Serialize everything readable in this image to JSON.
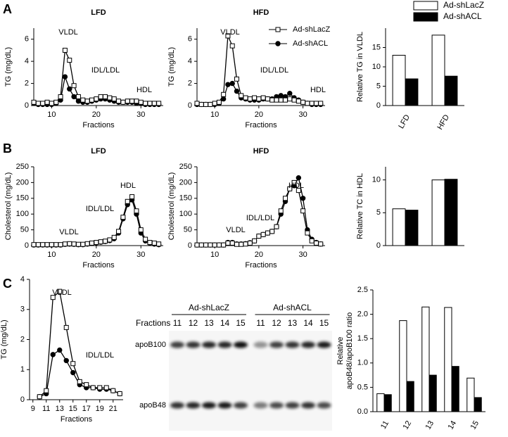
{
  "panel_labels": [
    "A",
    "B",
    "C"
  ],
  "chart_data": [
    {
      "type": "line",
      "title": "LFD",
      "xlabel": "Fractions",
      "ylabel": "TG (mg/dL)",
      "x": [
        6,
        7,
        8,
        9,
        10,
        11,
        12,
        13,
        14,
        15,
        16,
        17,
        18,
        19,
        20,
        21,
        22,
        23,
        24,
        25,
        26,
        27,
        28,
        29,
        30,
        31,
        32,
        33,
        34
      ],
      "xlim": [
        6,
        35
      ],
      "xticks": [
        10,
        20,
        30
      ],
      "ylim": [
        0,
        7
      ],
      "yticks": [
        0,
        2,
        4,
        6
      ],
      "annotations": [
        "VLDL",
        "IDL/LDL",
        "HDL"
      ],
      "series": [
        {
          "color": "#000000",
          "marker": "square-open",
          "values": [
            0.3,
            0.2,
            0.2,
            0.3,
            0.2,
            0.3,
            0.8,
            5.0,
            4.1,
            1.8,
            0.8,
            0.5,
            0.4,
            0.5,
            0.6,
            0.8,
            0.8,
            0.7,
            0.6,
            0.4,
            0.3,
            0.4,
            0.4,
            0.4,
            0.3,
            0.2,
            0.2,
            0.2,
            0.2
          ]
        },
        {
          "color": "#000000",
          "marker": "circle-filled",
          "values": [
            0.2,
            0.1,
            0.1,
            0.1,
            0.1,
            0.2,
            0.5,
            2.6,
            1.5,
            0.8,
            0.4,
            0.3,
            0.3,
            0.4,
            0.5,
            0.6,
            0.6,
            0.5,
            0.4,
            0.3,
            0.3,
            0.3,
            0.3,
            0.2,
            0.2,
            0.1,
            0.1,
            0.1,
            0.1
          ]
        }
      ]
    },
    {
      "type": "line",
      "title": "HFD",
      "xlabel": "Fractions",
      "ylabel": "TG (mg/dL)",
      "x": [
        6,
        7,
        8,
        9,
        10,
        11,
        12,
        13,
        14,
        15,
        16,
        17,
        18,
        19,
        20,
        21,
        22,
        23,
        24,
        25,
        26,
        27,
        28,
        29,
        30,
        31,
        32,
        33,
        34
      ],
      "xlim": [
        6,
        35
      ],
      "xticks": [
        10,
        20,
        30
      ],
      "ylim": [
        0,
        7
      ],
      "yticks": [
        0,
        2,
        4,
        6
      ],
      "annotations": [
        "VLDL",
        "IDL/LDL",
        "HDL"
      ],
      "legend": "upper right",
      "series": [
        {
          "name": "Ad-shLacZ",
          "color": "#000000",
          "marker": "square-open",
          "values": [
            0.2,
            0.1,
            0.1,
            0.1,
            0.2,
            0.3,
            1.0,
            6.3,
            5.4,
            2.4,
            0.9,
            0.7,
            0.6,
            0.7,
            0.6,
            0.7,
            0.6,
            0.5,
            0.5,
            0.5,
            0.5,
            0.6,
            0.5,
            0.4,
            0.3,
            0.2,
            0.2,
            0.2,
            0.2
          ]
        },
        {
          "name": "Ad-shACL",
          "color": "#000000",
          "marker": "circle-filled",
          "values": [
            0.1,
            0.1,
            0.1,
            0.1,
            0.1,
            0.2,
            0.6,
            1.9,
            2.0,
            1.3,
            0.7,
            0.6,
            0.5,
            0.5,
            0.5,
            0.6,
            0.6,
            0.6,
            0.8,
            0.9,
            0.8,
            1.1,
            0.7,
            0.5,
            0.3,
            0.2,
            0.1,
            0.1,
            0.1
          ]
        }
      ]
    },
    {
      "type": "bar",
      "ylabel": "Relative TG in VLDL",
      "categories": [
        "LFD",
        "HFD"
      ],
      "ylim": [
        0,
        20
      ],
      "yticks": [
        0,
        5,
        10,
        15
      ],
      "legend": "above",
      "series": [
        {
          "name": "Ad-shLacZ",
          "color": "#ffffff",
          "values": [
            13,
            18.2
          ]
        },
        {
          "name": "Ad-shACL",
          "color": "#000000",
          "values": [
            6.9,
            7.6
          ]
        }
      ]
    },
    {
      "type": "line",
      "title": "LFD",
      "xlabel": "Fractions",
      "ylabel": "Cholesterol (mg/dL)",
      "x": [
        6,
        7,
        8,
        9,
        10,
        11,
        12,
        13,
        14,
        15,
        16,
        17,
        18,
        19,
        20,
        21,
        22,
        23,
        24,
        25,
        26,
        27,
        28,
        29,
        30,
        31,
        32,
        33,
        34
      ],
      "xlim": [
        6,
        35
      ],
      "xticks": [
        10,
        20,
        30
      ],
      "ylim": [
        0,
        250
      ],
      "yticks": [
        0,
        50,
        100,
        150,
        200,
        250
      ],
      "annotations": [
        "VLDL",
        "IDL/LDL",
        "HDL"
      ],
      "series": [
        {
          "color": "#000000",
          "marker": "square-open",
          "values": [
            3,
            3,
            3,
            3,
            3,
            3,
            3,
            5,
            6,
            5,
            4,
            4,
            6,
            8,
            10,
            12,
            14,
            18,
            26,
            45,
            90,
            140,
            155,
            110,
            50,
            20,
            10,
            8,
            5
          ]
        },
        {
          "color": "#000000",
          "marker": "circle-filled",
          "values": [
            2,
            2,
            2,
            2,
            2,
            2,
            2,
            4,
            5,
            4,
            3,
            3,
            5,
            7,
            9,
            11,
            13,
            16,
            22,
            40,
            85,
            130,
            145,
            100,
            40,
            15,
            8,
            5,
            3
          ]
        }
      ]
    },
    {
      "type": "line",
      "title": "HFD",
      "xlabel": "Fractions",
      "ylabel": "Cholesterol (mg/dL)",
      "x": [
        6,
        7,
        8,
        9,
        10,
        11,
        12,
        13,
        14,
        15,
        16,
        17,
        18,
        19,
        20,
        21,
        22,
        23,
        24,
        25,
        26,
        27,
        28,
        29,
        30,
        31,
        32,
        33,
        34
      ],
      "xlim": [
        6,
        35
      ],
      "xticks": [
        10,
        20,
        30
      ],
      "ylim": [
        0,
        250
      ],
      "yticks": [
        0,
        50,
        100,
        150,
        200,
        250
      ],
      "annotations": [
        "VLDL",
        "IDL/LDL",
        "HDL"
      ],
      "series": [
        {
          "color": "#000000",
          "marker": "square-open",
          "values": [
            2,
            2,
            2,
            2,
            2,
            2,
            2,
            8,
            8,
            4,
            4,
            5,
            8,
            15,
            30,
            35,
            40,
            45,
            60,
            110,
            150,
            180,
            200,
            175,
            110,
            40,
            15,
            8,
            5
          ]
        },
        {
          "color": "#000000",
          "marker": "circle-filled",
          "values": [
            2,
            2,
            2,
            2,
            2,
            2,
            2,
            10,
            10,
            5,
            5,
            6,
            9,
            15,
            30,
            35,
            40,
            45,
            60,
            100,
            140,
            180,
            190,
            215,
            150,
            50,
            20,
            10,
            5
          ]
        }
      ]
    },
    {
      "type": "bar",
      "ylabel": "Relative TC in HDL",
      "categories": [
        null,
        null
      ],
      "ylim": [
        0,
        12
      ],
      "yticks": [
        0,
        5,
        10
      ],
      "series": [
        {
          "color": "#ffffff",
          "values": [
            5.6,
            10
          ]
        },
        {
          "color": "#000000",
          "values": [
            5.4,
            10.1
          ]
        }
      ]
    },
    {
      "type": "line",
      "xlabel": "Fractions",
      "ylabel": "TG (mg/dL)",
      "x": [
        10,
        11,
        12,
        13,
        14,
        15,
        16,
        17,
        18,
        19,
        20,
        21,
        22
      ],
      "xlim": [
        8.5,
        22.5
      ],
      "xticks": [
        9,
        11,
        13,
        15,
        17,
        19,
        21
      ],
      "ylim": [
        0,
        4
      ],
      "yticks": [
        0,
        1,
        2,
        3,
        4
      ],
      "annotations": [
        "VLDL",
        "IDL/LDL"
      ],
      "series": [
        {
          "color": "#000000",
          "marker": "square-open",
          "values": [
            0.1,
            0.3,
            3.4,
            3.6,
            2.4,
            1.2,
            0.6,
            0.5,
            0.4,
            0.4,
            0.4,
            0.3,
            0.2
          ]
        },
        {
          "color": "#000000",
          "marker": "circle-filled",
          "values": [
            0.1,
            0.2,
            1.5,
            1.65,
            1.3,
            0.9,
            0.5,
            0.4,
            0.4,
            0.35,
            0.35,
            0.3,
            0.2
          ]
        }
      ]
    },
    {
      "type": "bar",
      "ylabel": [
        "Relative",
        "apoB48/apoB100 ratio"
      ],
      "categories": [
        "11",
        "12",
        "13",
        "14",
        "15"
      ],
      "ylim": [
        0,
        2.5
      ],
      "yticks": [
        {
          "value": 0,
          "label": "0.0"
        },
        0.5,
        {
          "value": 1,
          "label": "1.0"
        },
        1.5,
        {
          "value": 2,
          "label": "2.0"
        },
        2.5
      ],
      "series": [
        {
          "color": "#ffffff",
          "values": [
            0.37,
            1.87,
            2.15,
            2.14,
            0.69
          ]
        },
        {
          "color": "#000000",
          "values": [
            0.35,
            0.62,
            0.75,
            0.93,
            0.29
          ]
        }
      ]
    }
  ],
  "blot": {
    "row_label": "Fractions",
    "groups": [
      "Ad-shLacZ",
      "Ad-shACL"
    ],
    "lanes": [
      "11",
      "12",
      "13",
      "14",
      "15",
      "11",
      "12",
      "13",
      "14",
      "15"
    ],
    "bands": [
      "apoB100",
      "apoB48"
    ]
  }
}
